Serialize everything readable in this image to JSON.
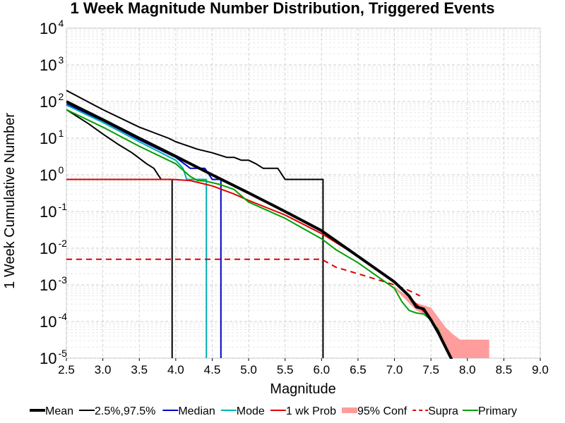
{
  "chart_data": {
    "type": "line",
    "title": "1 Week Magnitude Number Distribution, Triggered Events",
    "xlabel": "Magnitude",
    "ylabel": "1 Week Cumulative Number",
    "xlim": [
      2.5,
      9.0
    ],
    "ylim": [
      1e-05,
      10000
    ],
    "yscale": "log",
    "grid": true,
    "legend_position": "bottom",
    "x_ticks": [
      "2.5",
      "3.0",
      "3.5",
      "4.0",
      "4.5",
      "5.0",
      "5.5",
      "6.0",
      "6.5",
      "7.0",
      "7.5",
      "8.0",
      "8.5",
      "9.0"
    ],
    "y_ticks": [
      {
        "base": "10",
        "exp": "-5",
        "value": 1e-05
      },
      {
        "base": "10",
        "exp": "-4",
        "value": 0.0001
      },
      {
        "base": "10",
        "exp": "-3",
        "value": 0.001
      },
      {
        "base": "10",
        "exp": "-2",
        "value": 0.01
      },
      {
        "base": "10",
        "exp": "-1",
        "value": 0.1
      },
      {
        "base": "10",
        "exp": "0",
        "value": 1
      },
      {
        "base": "10",
        "exp": "1",
        "value": 10
      },
      {
        "base": "10",
        "exp": "2",
        "value": 100
      },
      {
        "base": "10",
        "exp": "3",
        "value": 1000
      },
      {
        "base": "10",
        "exp": "4",
        "value": 10000
      }
    ],
    "band": {
      "name": "95% Conf",
      "color": "#ff9c9c",
      "x": [
        7.0,
        7.3,
        7.5,
        7.6,
        7.7,
        7.8,
        7.9,
        8.3
      ],
      "upper": [
        0.0009,
        0.00032,
        0.00024,
        0.00013,
        7e-05,
        4.5e-05,
        3.2e-05,
        3.2e-05
      ],
      "lower": [
        0.0008,
        0.0002,
        0.00013,
        6e-05,
        2e-05,
        1e-05,
        1e-05,
        1e-05
      ]
    },
    "series": [
      {
        "name": "2.5%,97.5%",
        "color": "#000000",
        "width": 2,
        "dash": "",
        "x": [
          2.5,
          3.0,
          3.5,
          3.9,
          4.0,
          4.3,
          4.5,
          4.7,
          4.8,
          4.9,
          5.0,
          5.1,
          5.2,
          5.3,
          5.4,
          5.5,
          5.6,
          6.0,
          6.02,
          6.02
        ],
        "y": [
          200,
          60,
          20,
          10,
          8,
          5,
          4,
          3,
          3,
          2.5,
          2.5,
          2,
          1.5,
          1.5,
          1.5,
          0.75,
          0.75,
          0.75,
          0.75,
          1e-05
        ]
      },
      {
        "name": "2.5%,97.5%",
        "color": "#000000",
        "width": 2,
        "dash": "",
        "x": [
          2.5,
          2.8,
          3.0,
          3.2,
          3.4,
          3.6,
          3.7,
          3.8,
          3.9,
          3.95,
          3.95
        ],
        "y": [
          60,
          25,
          13,
          7,
          4,
          2,
          1.5,
          0.75,
          0.75,
          0.75,
          1e-05
        ]
      },
      {
        "name": "Median",
        "color": "#0000cc",
        "width": 2,
        "dash": "",
        "x": [
          2.5,
          3.0,
          3.5,
          4.0,
          4.2,
          4.4,
          4.5,
          4.55,
          4.6,
          4.6,
          4.62,
          4.62
        ],
        "y": [
          85,
          30,
          9,
          3,
          1.5,
          1.5,
          0.75,
          0.75,
          0.75,
          0.75,
          0.75,
          1e-05
        ]
      },
      {
        "name": "Mode",
        "color": "#00b0b0",
        "width": 2,
        "dash": "",
        "x": [
          2.5,
          3.0,
          3.5,
          3.8,
          4.0,
          4.1,
          4.15,
          4.2,
          4.3,
          4.35,
          4.4,
          4.42,
          4.42
        ],
        "y": [
          80,
          27,
          8,
          4,
          2.5,
          1.5,
          0.75,
          0.75,
          0.75,
          0.75,
          0.75,
          0.75,
          1e-05
        ]
      },
      {
        "name": "1 wk Prob",
        "color": "#e00000",
        "width": 2,
        "dash": "",
        "x": [
          2.5,
          3.0,
          3.5,
          3.9,
          4.0,
          4.2,
          4.5,
          4.8,
          5.0,
          5.5,
          6.0,
          6.5,
          7.0,
          7.3,
          7.5,
          7.6,
          7.7
        ],
        "y": [
          0.75,
          0.75,
          0.75,
          0.75,
          0.74,
          0.7,
          0.5,
          0.3,
          0.2,
          0.08,
          0.025,
          0.006,
          0.0012,
          0.0003,
          0.00012,
          5e-05,
          2e-05
        ]
      },
      {
        "name": "Supra",
        "color": "#e00000",
        "width": 2,
        "dash": "8,6",
        "x": [
          2.5,
          3.0,
          3.5,
          4.0,
          4.5,
          5.0,
          5.5,
          6.0,
          6.2,
          6.5,
          7.0,
          7.2,
          7.35
        ],
        "y": [
          0.005,
          0.005,
          0.005,
          0.005,
          0.005,
          0.005,
          0.005,
          0.005,
          0.003,
          0.002,
          0.001,
          0.0007,
          0.0005
        ]
      },
      {
        "name": "Primary",
        "color": "#00a000",
        "width": 2,
        "dash": "",
        "x": [
          2.5,
          3.0,
          3.5,
          4.0,
          4.2,
          4.3,
          4.4,
          4.6,
          4.8,
          5.0,
          5.5,
          6.0,
          6.2,
          6.5,
          7.0,
          7.1,
          7.2,
          7.3,
          7.4,
          7.5,
          7.6,
          7.7
        ],
        "y": [
          60,
          20,
          6,
          2,
          0.9,
          0.7,
          0.68,
          0.55,
          0.4,
          0.18,
          0.065,
          0.018,
          0.009,
          0.004,
          0.0008,
          0.00035,
          0.0002,
          0.00017,
          0.00016,
          0.00011,
          6e-05,
          2e-05
        ]
      },
      {
        "name": "Mean",
        "color": "#000000",
        "width": 4,
        "dash": "",
        "x": [
          2.5,
          3.0,
          3.5,
          4.0,
          4.5,
          5.0,
          5.5,
          6.0,
          6.5,
          7.0,
          7.2,
          7.3,
          7.4,
          7.5,
          7.6,
          7.7,
          7.8
        ],
        "y": [
          100,
          32,
          10,
          3.2,
          1.0,
          0.32,
          0.1,
          0.03,
          0.006,
          0.0012,
          0.0005,
          0.00025,
          0.00022,
          0.00011,
          5e-05,
          2e-05,
          8e-06
        ]
      }
    ],
    "legend": [
      {
        "label": "Mean",
        "color": "#000000",
        "width": 4,
        "dash": "",
        "kind": "line"
      },
      {
        "label": "2.5%,97.5%",
        "color": "#000000",
        "width": 2,
        "dash": "",
        "kind": "line"
      },
      {
        "label": "Median",
        "color": "#0000cc",
        "width": 2,
        "dash": "",
        "kind": "line"
      },
      {
        "label": "Mode",
        "color": "#00b0b0",
        "width": 2,
        "dash": "",
        "kind": "line"
      },
      {
        "label": "1 wk Prob",
        "color": "#e00000",
        "width": 2,
        "dash": "",
        "kind": "line"
      },
      {
        "label": "95% Conf",
        "color": "#ff9c9c",
        "width": 8,
        "dash": "",
        "kind": "patch"
      },
      {
        "label": "Supra",
        "color": "#e00000",
        "width": 2,
        "dash": "5,4",
        "kind": "line"
      },
      {
        "label": "Primary",
        "color": "#00a000",
        "width": 2,
        "dash": "",
        "kind": "line"
      }
    ]
  }
}
